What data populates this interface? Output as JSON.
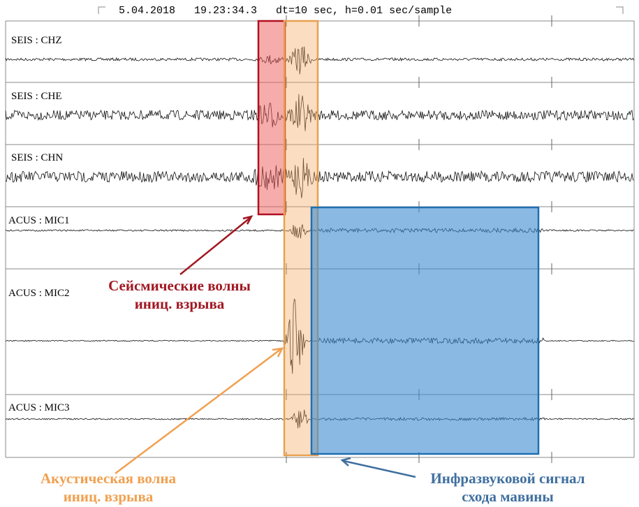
{
  "header": {
    "title": "5.04.2018   19.23:34.3   dt=10 sec, h=0.01 sec/sample"
  },
  "channels": [
    "SEIS : CHZ",
    "SEIS : CHE",
    "SEIS : CHN",
    "ACUS : MIC1",
    "ACUS : MIC2",
    "ACUS : MIC3"
  ],
  "annotations": {
    "seismic": [
      "Сейсмические волны",
      "иниц. взрыва"
    ],
    "acoustic": [
      "Акустическая волна",
      "иниц. взрыва"
    ],
    "infrasound": [
      "Инфразвуковой сигнал",
      "схода мавины"
    ]
  }
}
